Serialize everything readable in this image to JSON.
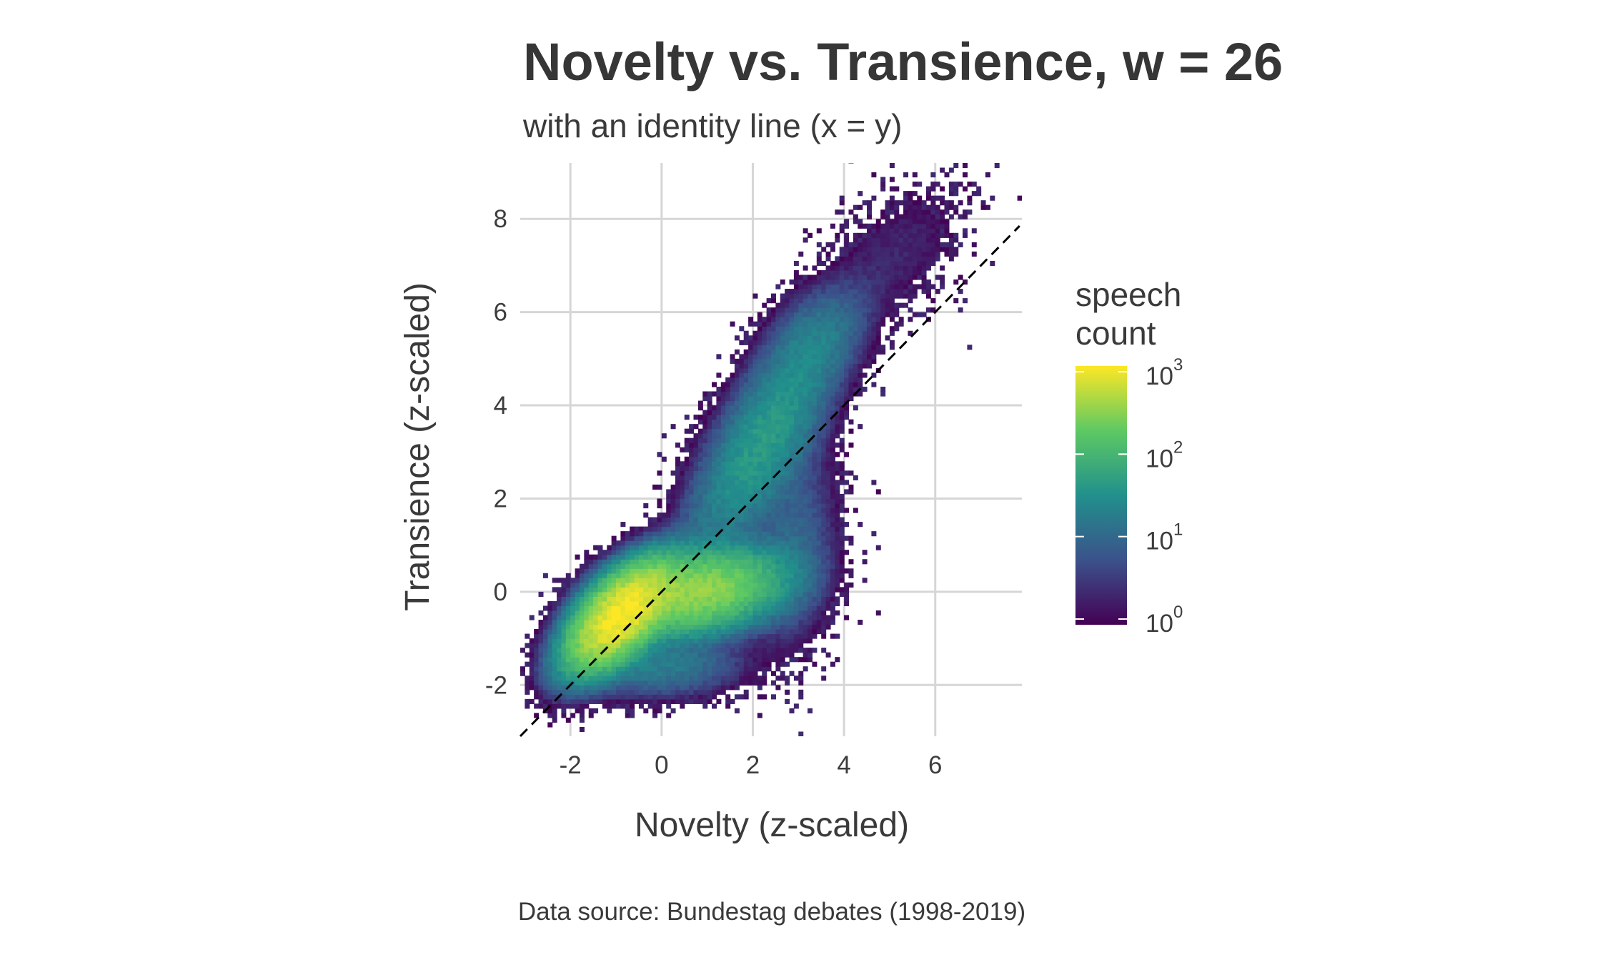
{
  "chart_data": {
    "type": "heatmap",
    "title": "Novelty vs. Transience, w = 26",
    "subtitle": "with an identity line (x = y)",
    "xlabel": "Novelty (z-scaled)",
    "ylabel": "Transience (z-scaled)",
    "caption": "Data source: Bundestag debates (1998-2019)",
    "xlim": [
      -3.1,
      7.9
    ],
    "ylim": [
      -3.1,
      9.2
    ],
    "x_ticks": [
      -2,
      0,
      2,
      4,
      6
    ],
    "x_tick_labels": [
      "-2",
      "0",
      "2",
      "4",
      "6"
    ],
    "y_ticks": [
      -2,
      0,
      2,
      4,
      6,
      8
    ],
    "y_tick_labels": [
      "-2",
      "0",
      "2",
      "4",
      "6",
      "8"
    ],
    "grid": true,
    "bin_width": 0.1,
    "reference_line": {
      "type": "identity",
      "slope": 1,
      "intercept": 0,
      "style": "dashed",
      "color": "#000000"
    },
    "color_scale": {
      "name": "viridis",
      "transform": "log10",
      "colors": [
        "#440154",
        "#3b528b",
        "#21908c",
        "#5dc963",
        "#fde725"
      ],
      "domain": [
        1,
        1000
      ]
    },
    "density_components": [
      {
        "cx": -0.9,
        "cy": -0.5,
        "sx": 0.55,
        "sy": 0.55,
        "rho": 0.6,
        "peak": 1000
      },
      {
        "cx": 0.8,
        "cy": 0.0,
        "sx": 0.9,
        "sy": 0.45,
        "rho": 0.3,
        "peak": 320
      },
      {
        "cx": 2.2,
        "cy": 3.2,
        "sx": 0.85,
        "sy": 1.3,
        "rho": 0.75,
        "peak": 45
      },
      {
        "cx": 3.4,
        "cy": 5.4,
        "sx": 0.6,
        "sy": 0.6,
        "rho": 0.4,
        "peak": 14
      },
      {
        "cx": 2.9,
        "cy": 1.0,
        "sx": 0.5,
        "sy": 1.2,
        "rho": 0.2,
        "peak": 9
      },
      {
        "cx": 5.2,
        "cy": 7.3,
        "sx": 0.9,
        "sy": 0.9,
        "rho": 0.5,
        "peak": 2.2
      },
      {
        "cx": 0.0,
        "cy": -1.6,
        "sx": 0.9,
        "sy": 0.35,
        "rho": 0.1,
        "peak": 18
      }
    ]
  },
  "legend": {
    "title_line1": "speech",
    "title_line2": "count",
    "ticks": [
      {
        "base": "10",
        "exp": "3",
        "value": 1000
      },
      {
        "base": "10",
        "exp": "2",
        "value": 100
      },
      {
        "base": "10",
        "exp": "1",
        "value": 10
      },
      {
        "base": "10",
        "exp": "0",
        "value": 1
      }
    ]
  }
}
